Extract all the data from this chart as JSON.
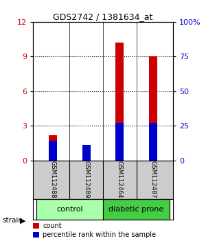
{
  "title": "GDS2742 / 1381634_at",
  "samples": [
    "GSM112488",
    "GSM112489",
    "GSM112464",
    "GSM112487"
  ],
  "count_values": [
    2.2,
    0.75,
    10.2,
    9.0
  ],
  "percentile_values": [
    14,
    11,
    27,
    27
  ],
  "groups": [
    {
      "name": "control",
      "indices": [
        0,
        1
      ],
      "color": "#aaffaa"
    },
    {
      "name": "diabetic prone",
      "indices": [
        2,
        3
      ],
      "color": "#44cc44"
    }
  ],
  "ylim_left": [
    0,
    12
  ],
  "ylim_right": [
    0,
    100
  ],
  "yticks_left": [
    0,
    3,
    6,
    9,
    12
  ],
  "yticks_right": [
    0,
    25,
    50,
    75,
    100
  ],
  "ytick_labels_right": [
    "0",
    "25",
    "50",
    "75",
    "100%"
  ],
  "bar_width": 0.25,
  "count_color": "#cc0000",
  "percentile_color": "#0000cc",
  "bg_color": "#ffffff",
  "sample_box_color": "#cccccc",
  "strain_label": "strain",
  "legend_count": "count",
  "legend_percentile": "percentile rank within the sample"
}
